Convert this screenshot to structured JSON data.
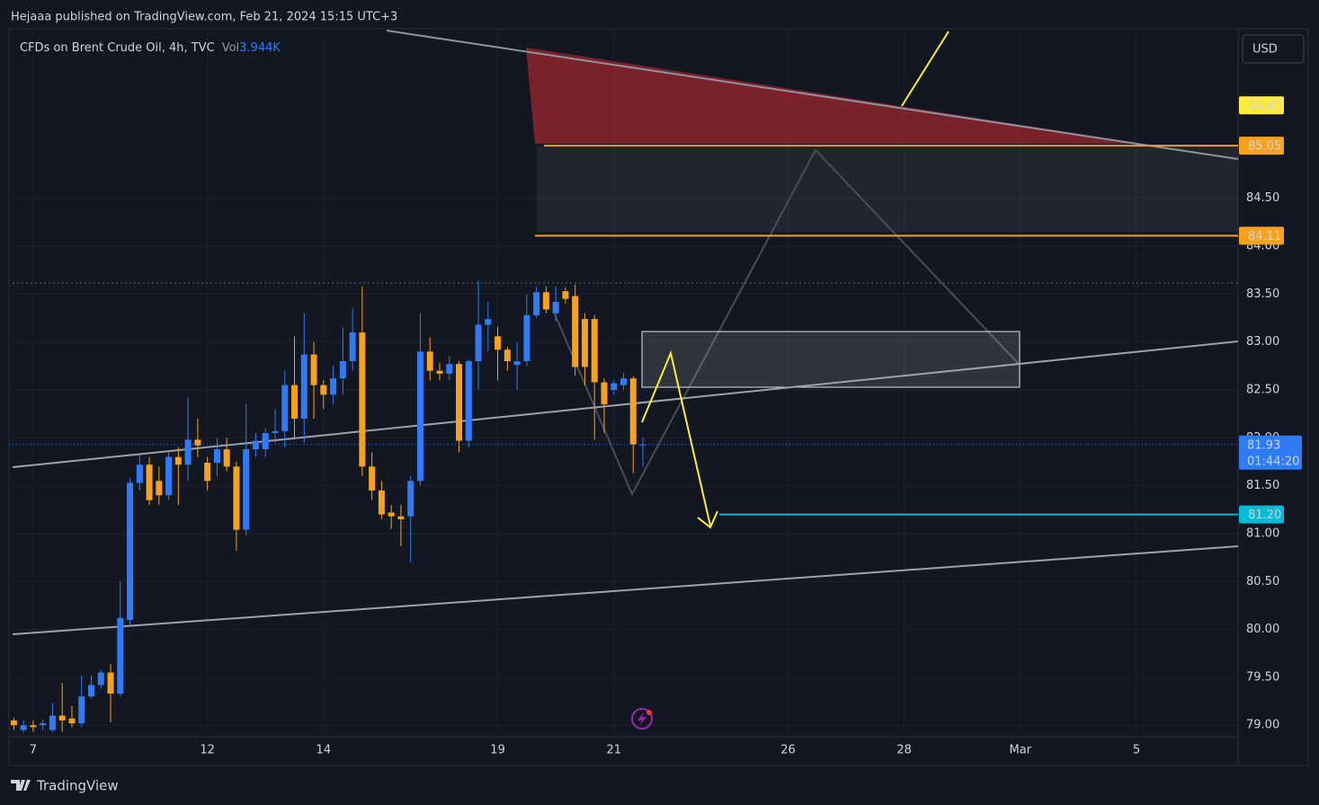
{
  "header": {
    "publisher": "Hejaaa published on TradingView.com, Feb 21, 2024 15:15 UTC+3",
    "currency": "USD",
    "brand": "TradingView"
  },
  "chart_data": {
    "type": "candlestick",
    "title": "CFDs on Brent Crude Oil, 4h, TVC",
    "volume_label": "Vol",
    "volume_value": "3.944K",
    "up_color": "#2f7bf5",
    "down_color": "#f7a21b",
    "grid": true,
    "x": [
      0,
      1,
      2,
      3,
      4,
      5,
      6,
      7,
      8,
      9,
      10,
      11,
      12,
      13,
      14,
      15,
      16,
      17,
      18,
      19,
      20,
      21,
      22,
      23,
      24,
      25,
      26,
      27,
      28,
      29,
      30,
      31,
      32,
      33,
      34,
      35,
      36,
      37,
      38,
      39,
      40,
      41,
      42,
      43,
      44,
      45,
      46,
      47,
      48,
      49,
      50,
      51,
      52,
      53,
      54,
      55,
      56,
      57,
      58,
      59,
      60,
      61,
      62,
      63,
      64,
      65
    ],
    "open": [
      79.05,
      78.95,
      79.0,
      79.0,
      78.95,
      79.1,
      79.07,
      79.02,
      79.3,
      79.42,
      79.55,
      79.33,
      80.1,
      81.53,
      81.72,
      81.55,
      81.4,
      81.8,
      81.72,
      81.98,
      81.74,
      81.74,
      81.88,
      81.7,
      81.04,
      81.88,
      81.88,
      82.05,
      82.07,
      82.55,
      82.2,
      82.87,
      82.55,
      82.45,
      82.62,
      82.8,
      83.1,
      81.7,
      81.45,
      81.22,
      81.18,
      81.18,
      81.55,
      82.9,
      82.7,
      82.67,
      82.77,
      81.97,
      82.8,
      83.18,
      83.06,
      82.92,
      82.76,
      82.8,
      83.28,
      83.52,
      83.3,
      83.53,
      83.48,
      83.24,
      83.24,
      82.58,
      82.5,
      82.55,
      82.62,
      81.93
    ],
    "high": [
      79.08,
      79.05,
      79.05,
      79.06,
      79.23,
      79.44,
      79.2,
      79.52,
      79.52,
      79.58,
      79.64,
      80.5,
      81.58,
      81.82,
      81.8,
      81.7,
      81.85,
      81.9,
      82.42,
      82.2,
      81.8,
      82.0,
      82.0,
      81.75,
      82.35,
      82.05,
      82.1,
      82.3,
      82.7,
      83.06,
      83.3,
      83.0,
      82.6,
      82.75,
      83.15,
      83.35,
      83.58,
      81.85,
      81.55,
      81.3,
      81.3,
      81.6,
      83.3,
      83.05,
      82.78,
      82.85,
      82.8,
      82.82,
      83.64,
      83.42,
      83.16,
      82.95,
      83.0,
      83.5,
      83.58,
      83.58,
      83.58,
      83.57,
      83.6,
      83.3,
      83.28,
      82.62,
      82.6,
      82.68,
      82.64,
      82.0
    ],
    "low": [
      78.95,
      78.92,
      78.93,
      78.95,
      78.93,
      78.93,
      78.98,
      78.98,
      79.28,
      79.38,
      79.03,
      79.3,
      80.05,
      81.45,
      81.3,
      81.3,
      81.35,
      81.3,
      81.55,
      81.8,
      81.45,
      81.6,
      81.65,
      80.82,
      80.98,
      81.8,
      81.8,
      81.95,
      81.9,
      82.0,
      81.95,
      82.2,
      82.3,
      82.35,
      82.45,
      82.7,
      81.6,
      81.35,
      81.15,
      81.05,
      80.87,
      80.7,
      81.5,
      82.6,
      82.6,
      82.6,
      81.85,
      81.9,
      82.5,
      82.9,
      82.6,
      82.7,
      82.5,
      82.75,
      83.25,
      83.3,
      83.22,
      83.4,
      82.65,
      82.55,
      81.98,
      82.05,
      82.45,
      82.5,
      81.63,
      81.7
    ],
    "close": [
      79.0,
      79.0,
      78.98,
      79.02,
      79.1,
      79.05,
      79.02,
      79.3,
      79.42,
      79.55,
      79.33,
      80.12,
      81.53,
      81.72,
      81.35,
      81.4,
      81.8,
      81.72,
      81.98,
      81.92,
      81.55,
      81.88,
      81.7,
      81.04,
      81.88,
      81.97,
      82.05,
      82.07,
      82.55,
      82.2,
      82.87,
      82.55,
      82.45,
      82.62,
      82.8,
      83.1,
      81.7,
      81.45,
      81.2,
      81.18,
      81.15,
      81.55,
      82.9,
      82.7,
      82.67,
      82.77,
      81.97,
      82.8,
      83.18,
      83.24,
      82.92,
      82.8,
      82.8,
      83.28,
      83.52,
      83.34,
      83.42,
      83.45,
      82.74,
      82.74,
      82.58,
      82.35,
      82.57,
      82.62,
      81.93,
      81.93
    ],
    "xlim": [
      -0.5,
      126.5
    ],
    "xticks": [
      {
        "value": 2,
        "label": "7"
      },
      {
        "value": 20,
        "label": "12"
      },
      {
        "value": 32,
        "label": "14"
      },
      {
        "value": 50,
        "label": "19"
      },
      {
        "value": 62,
        "label": "21"
      },
      {
        "value": 80,
        "label": "26"
      },
      {
        "value": 92,
        "label": "28"
      },
      {
        "value": 104,
        "label": "Mar"
      },
      {
        "value": 116,
        "label": "5"
      }
    ],
    "ylim": [
      78.88,
      86.27
    ],
    "yticks": [
      {
        "value": 79,
        "label": "79.00"
      },
      {
        "value": 79.5,
        "label": "79.50"
      },
      {
        "value": 80,
        "label": "80.00"
      },
      {
        "value": 80.5,
        "label": "80.50"
      },
      {
        "value": 81,
        "label": "81.00"
      },
      {
        "value": 81.5,
        "label": "81.50"
      },
      {
        "value": 82,
        "label": "82.00"
      },
      {
        "value": 82.5,
        "label": "82.50"
      },
      {
        "value": 83,
        "label": "83.00"
      },
      {
        "value": 83.5,
        "label": "83.50"
      },
      {
        "value": 84,
        "label": "84.00"
      },
      {
        "value": 84.5,
        "label": "84.50"
      }
    ],
    "price_lines": [
      {
        "value": 85.47,
        "color": "#ffeb3b",
        "line": false
      },
      {
        "value": 85.05,
        "color": "#f7a21b",
        "line": true
      },
      {
        "value": 84.11,
        "color": "#f7a21b",
        "line": true
      },
      {
        "value": 81.2,
        "label": "81.20",
        "color": "#00bcd4",
        "line": true
      }
    ],
    "last_price": {
      "value": 81.93,
      "countdown": "01:44:20",
      "color": "#2f7bf5"
    }
  }
}
